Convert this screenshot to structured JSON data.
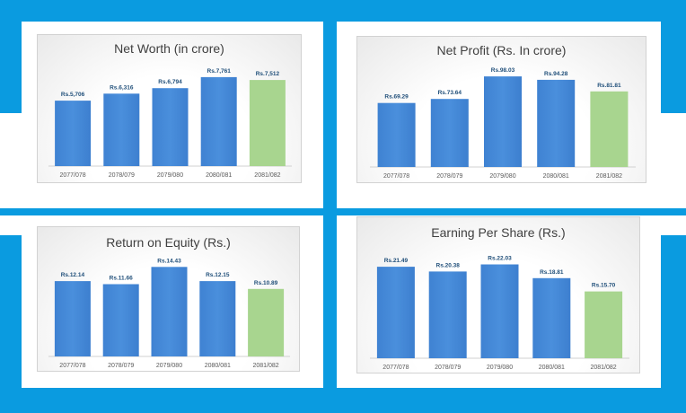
{
  "colors": {
    "background": "#0a9be0",
    "panel": "#ffffff",
    "bar_blue": "#4a8fdc",
    "bar_green": "#a8d58f",
    "value_label": "#1f4e79",
    "tick_label": "#595959",
    "title": "#404040"
  },
  "chart_data": [
    {
      "type": "bar",
      "title": "Net Worth  (in crore)",
      "categories": [
        "2077/078",
        "2078/079",
        "2079/080",
        "2080/081",
        "2081/082"
      ],
      "values": [
        5706,
        6316,
        6794,
        7761,
        7512
      ],
      "data_labels": [
        "Rs.5,706",
        "Rs.6,316",
        "Rs.6,794",
        "Rs.7,761",
        "Rs.7,512"
      ],
      "highlight_last": true,
      "xlabel": "",
      "ylabel": "",
      "ylim": [
        0,
        8300
      ]
    },
    {
      "type": "bar",
      "title": "Net Profit  (Rs. In crore)",
      "categories": [
        "2077/078",
        "2078/079",
        "2079/080",
        "2080/081",
        "2081/082"
      ],
      "values": [
        69.29,
        73.64,
        98.03,
        94.28,
        81.81
      ],
      "data_labels": [
        "Rs.69.29",
        "Rs.73.64",
        "Rs.98.03",
        "Rs.94.28",
        "Rs.81.81"
      ],
      "highlight_last": true,
      "xlabel": "",
      "ylabel": "",
      "ylim": [
        0,
        102
      ]
    },
    {
      "type": "bar",
      "title": "Return on Equity (Rs.)",
      "categories": [
        "2077/078",
        "2078/079",
        "2079/080",
        "2080/081",
        "2081/082"
      ],
      "values": [
        12.14,
        11.66,
        14.43,
        12.15,
        10.89
      ],
      "data_labels": [
        "Rs.12.14",
        "Rs.11.66",
        "Rs.14.43",
        "Rs.12.15",
        "Rs.10.89"
      ],
      "highlight_last": true,
      "xlabel": "",
      "ylabel": "",
      "ylim": [
        0,
        15.2
      ]
    },
    {
      "type": "bar",
      "title": "Earning Per Share (Rs.)",
      "categories": [
        "2077/078",
        "2078/079",
        "2079/080",
        "2080/081",
        "2081/082"
      ],
      "values": [
        21.49,
        20.38,
        22.03,
        18.81,
        15.7
      ],
      "data_labels": [
        "Rs.21.49",
        "Rs.20.38",
        "Rs.22.03",
        "Rs.18.81",
        "Rs.15.70"
      ],
      "highlight_last": true,
      "xlabel": "",
      "ylabel": "",
      "ylim": [
        0,
        23.2
      ]
    }
  ]
}
